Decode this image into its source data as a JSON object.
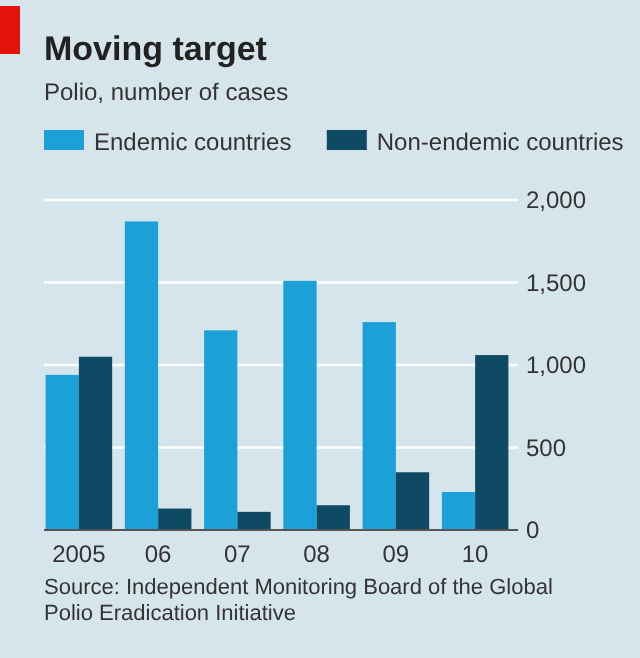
{
  "chart_data": {
    "type": "bar",
    "title": "Moving target",
    "subtitle": "Polio, number of cases",
    "categories": [
      "2005",
      "06",
      "07",
      "08",
      "09",
      "10"
    ],
    "series": [
      {
        "name": "Endemic countries",
        "color": "#1ba1d8",
        "values": [
          940,
          1870,
          1210,
          1510,
          1260,
          230
        ]
      },
      {
        "name": "Non-endemic countries",
        "color": "#0e4a64",
        "values": [
          1050,
          130,
          110,
          150,
          350,
          1060
        ]
      }
    ],
    "ylim": [
      0,
      2000
    ],
    "yticks": [
      0,
      500,
      {
        "value": 1000,
        "label": "1,000"
      },
      {
        "value": 1500,
        "label": "1,500"
      },
      {
        "value": 2000,
        "label": "2,000"
      }
    ],
    "grid": "y",
    "legend": "top",
    "annotations": [
      "Source: Independent Monitoring Board of the Global Polio Eradication Initiative"
    ]
  }
}
